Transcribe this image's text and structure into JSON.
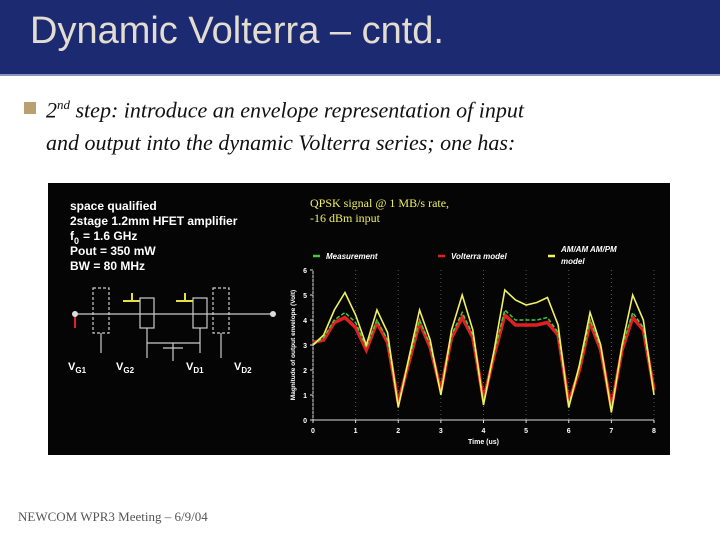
{
  "header": {
    "title": "Dynamic Volterra – cntd."
  },
  "bullet": {
    "number": "2",
    "superscript": "nd",
    "lines": [
      "step: introduce an envelope representation of input",
      "and output into the dynamic Volterra series; one has:"
    ]
  },
  "figure": {
    "specs": [
      "space qualified",
      "2stage 1.2mm HFET amplifier",
      {
        "main": "f",
        "sub": "0",
        "rest": "= 1.6 GHz"
      },
      "Pout = 350 mW",
      "BW = 80 MHz"
    ],
    "circuit_labels": [
      {
        "main": "V",
        "sub": "G1"
      },
      {
        "main": "V",
        "sub": "G2"
      },
      {
        "main": "V",
        "sub": "D1"
      },
      {
        "main": "V",
        "sub": "D2"
      }
    ],
    "chart": {
      "type": "line",
      "title_lines": [
        "QPSK signal @ 1 MB/s rate,",
        "-16 dBm input"
      ],
      "y_label": "Magnitude of output envelope (Volt)",
      "x_label": "Time (us)",
      "xlim": [
        0,
        8
      ],
      "ylim": [
        0,
        6
      ],
      "xticks": [
        0,
        1,
        2,
        3,
        4,
        5,
        6,
        7,
        8
      ],
      "yticks": [
        0,
        1,
        2,
        3,
        4,
        5,
        6
      ],
      "x": [
        0,
        0.25,
        0.5,
        0.75,
        1,
        1.25,
        1.5,
        1.75,
        2,
        2.25,
        2.5,
        2.75,
        3,
        3.25,
        3.5,
        3.75,
        4,
        4.25,
        4.5,
        4.75,
        5,
        5.25,
        5.5,
        5.75,
        6,
        6.25,
        6.5,
        6.75,
        7,
        7.25,
        7.5,
        7.75,
        8
      ],
      "series": [
        {
          "name": [
            "Volterra model"
          ],
          "color": "#e02020",
          "values": [
            3.1,
            3.2,
            3.9,
            4.1,
            3.7,
            2.8,
            3.9,
            3.1,
            0.7,
            2.3,
            3.9,
            2.9,
            1.2,
            3.3,
            4.1,
            3.3,
            0.8,
            2.6,
            4.2,
            3.8,
            3.8,
            3.8,
            3.9,
            3.4,
            0.7,
            2.0,
            3.9,
            2.8,
            0.5,
            2.8,
            4.1,
            3.6,
            1.2
          ]
        },
        {
          "name": [
            "Measurement"
          ],
          "color": "#40c840",
          "values": [
            3.0,
            3.3,
            4.0,
            4.3,
            3.9,
            2.9,
            4.0,
            3.2,
            0.6,
            2.4,
            4.0,
            3.0,
            1.1,
            3.4,
            4.3,
            3.4,
            0.7,
            2.7,
            4.4,
            4.0,
            4.0,
            4.0,
            4.1,
            3.5,
            0.6,
            2.1,
            4.0,
            2.9,
            0.4,
            2.9,
            4.3,
            3.7,
            1.1
          ]
        },
        {
          "name": [
            "AM/AM AM/PM",
            "model"
          ],
          "color": "#f0f060",
          "values": [
            3.0,
            3.4,
            4.4,
            5.1,
            4.2,
            3.0,
            4.4,
            3.5,
            0.5,
            2.5,
            4.4,
            3.2,
            1.0,
            3.6,
            5.0,
            3.6,
            0.6,
            2.8,
            5.2,
            4.8,
            4.6,
            4.7,
            4.9,
            3.8,
            0.5,
            2.2,
            4.3,
            3.0,
            0.3,
            3.0,
            5.0,
            4.0,
            1.0
          ]
        }
      ]
    }
  },
  "footer": {
    "text": "NEWCOM  WPR3 Meeting – 6/9/04"
  }
}
